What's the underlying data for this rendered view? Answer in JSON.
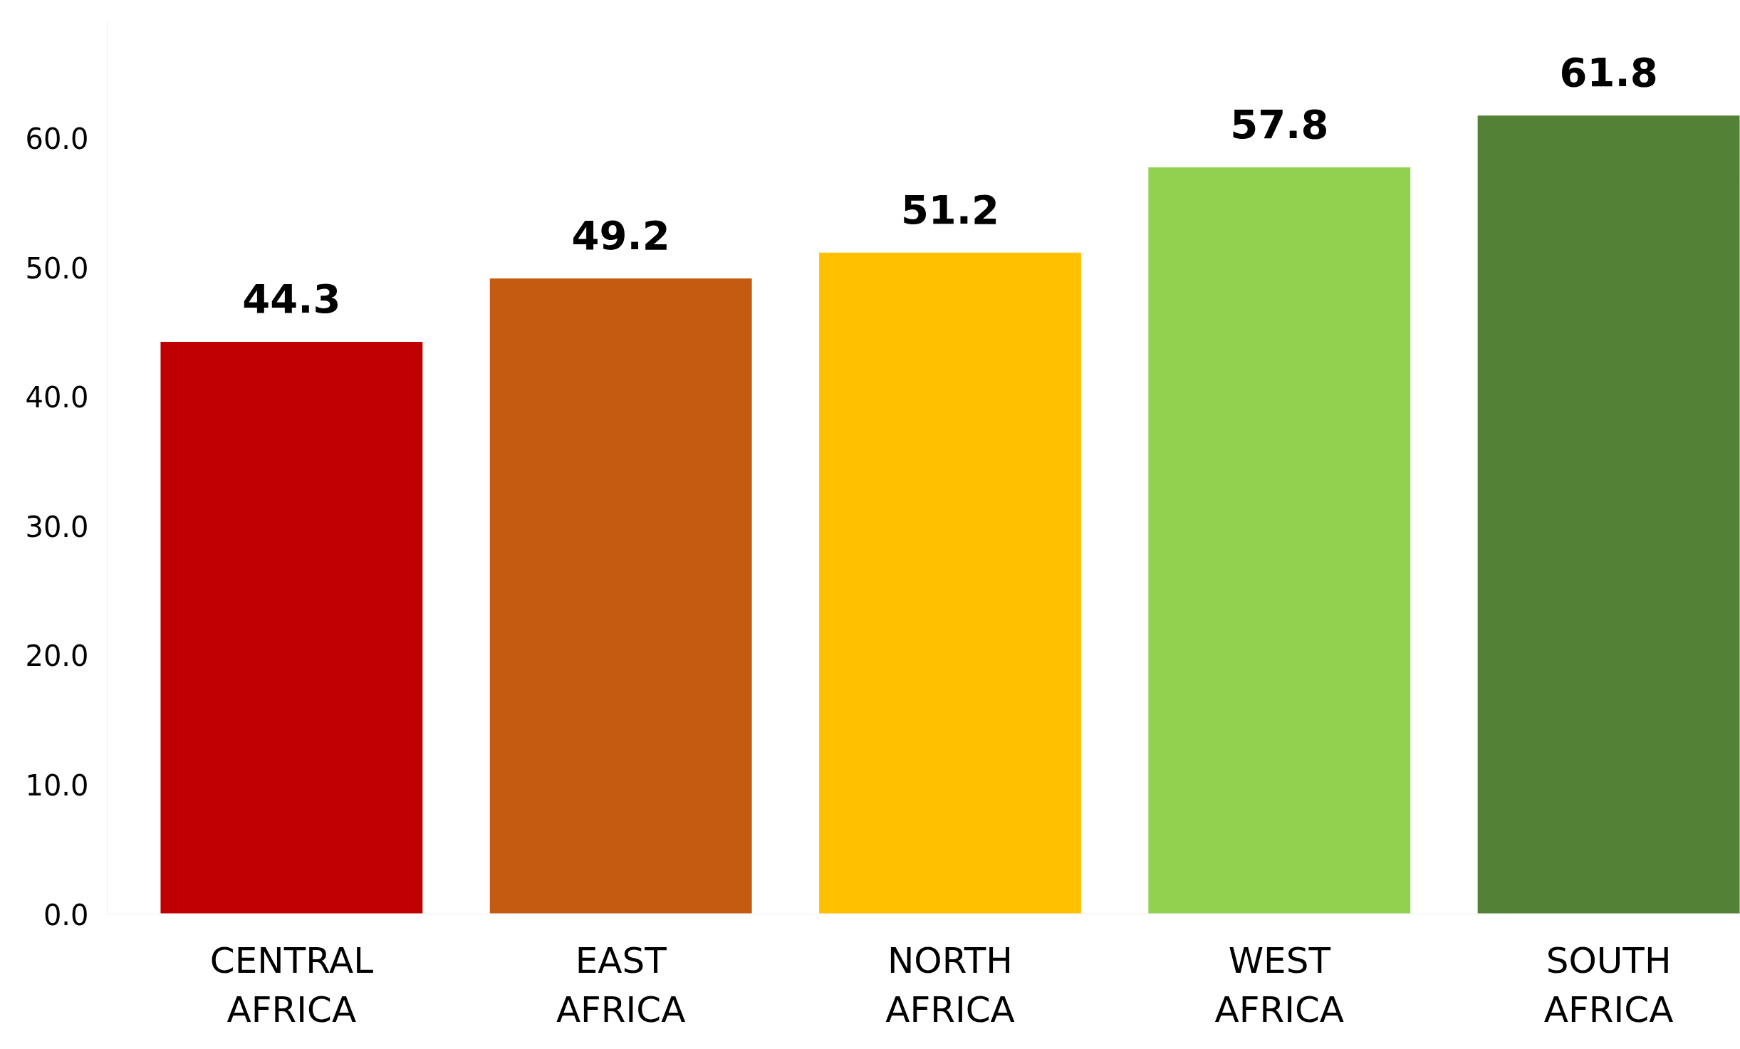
{
  "chart_data": {
    "type": "bar",
    "categories": [
      "CENTRAL\nAFRICA",
      "EAST\nAFRICA",
      "NORTH\nAFRICA",
      "WEST\nAFRICA",
      "SOUTH\nAFRICA"
    ],
    "values": [
      44.3,
      49.2,
      51.2,
      57.8,
      61.8
    ],
    "colors": [
      "#c00000",
      "#c55a11",
      "#ffc000",
      "#92d050",
      "#538135"
    ],
    "ylim": [
      0,
      69
    ],
    "yticks": [
      {
        "value": 0,
        "label": "0.0"
      },
      {
        "value": 10,
        "label": "10.0"
      },
      {
        "value": 20,
        "label": "20.0"
      },
      {
        "value": 30,
        "label": "30.0"
      },
      {
        "value": 40,
        "label": "40.0"
      },
      {
        "value": 50,
        "label": "50.0"
      },
      {
        "value": 60,
        "label": "60.0"
      }
    ],
    "data_labels": true,
    "grid": false
  }
}
